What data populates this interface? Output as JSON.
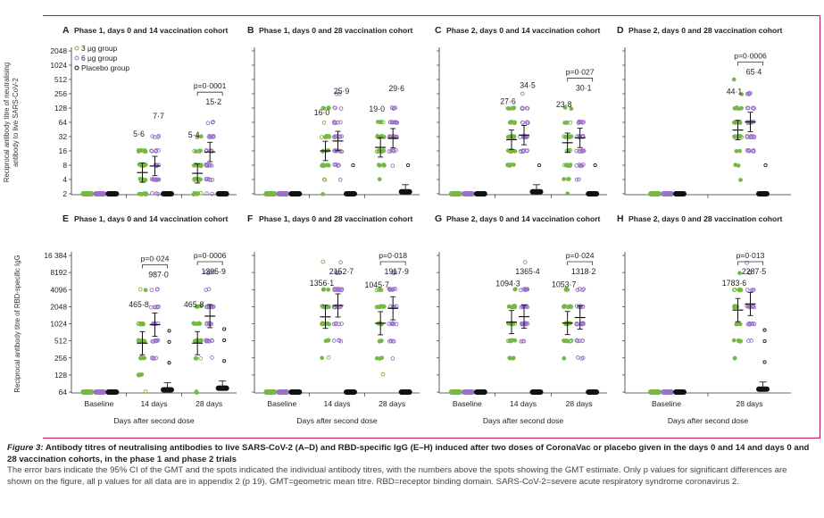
{
  "figure": {
    "caption_label": "Figure 3:",
    "caption_title": " Antibody titres of neutralising antibodies to live SARS-CoV-2 (A–D) and RBD-specific IgG (E–H) induced after two doses of CoronaVac or placebo given in the days 0 and 14 and days 0 and 28 vaccination cohorts, in the phase 1 and phase 2 trials",
    "caption_body": "The error bars indicate the 95% CI of the GMT and the spots indicated the individual antibody titres, with the numbers above the spots showing the GMT estimate. Only p values for significant differences are shown on the figure, all p values for all data are in appendix 2 (p 19). GMT=geometric mean titre. RBD=receptor binding domain. SARS-CoV-2=severe acute respiratory syndrome coronavirus 2."
  },
  "colors": {
    "g3": "#76b843",
    "g6": "#9a72c6",
    "placebo": "#111111",
    "frame": "#c2185b"
  },
  "legend": [
    "3 μg group",
    "6 μg group",
    "Placebo group"
  ],
  "xlabel": "Days after second dose",
  "chart_data": [
    {
      "panel": "A",
      "title": "Phase 1, days 0 and 14 vaccination cohort",
      "type": "scatter",
      "ylabel": "Reciprocal antibody titre of neutralising antibody to live SARS-CoV-2",
      "yticks": [
        "2048",
        "1024",
        "512",
        "256",
        "128",
        "64",
        "32",
        "16",
        "8",
        "4",
        "2"
      ],
      "yrange": [
        2,
        2048
      ],
      "categories": [
        "Baseline",
        "14 days",
        "28 days"
      ],
      "series": [
        {
          "name": "3 μg group",
          "gmt": [
            2,
            5.6,
            5.4
          ],
          "gmt_labels": [
            "",
            "5·6",
            "5·4"
          ]
        },
        {
          "name": "6 μg group",
          "gmt": [
            2,
            7.7,
            15.2
          ],
          "gmt_labels": [
            "",
            "7·7",
            "15·2"
          ]
        },
        {
          "name": "Placebo group",
          "gmt": [
            2,
            2,
            2
          ],
          "gmt_labels": [
            "",
            "",
            ""
          ]
        }
      ],
      "pvalues": [
        {
          "category": "28 days",
          "text": "p=0·0001"
        }
      ]
    },
    {
      "panel": "B",
      "title": "Phase 1, days 0 and 28 vaccination cohort",
      "type": "scatter",
      "yrange": [
        2,
        2048
      ],
      "categories": [
        "Baseline",
        "14 days",
        "28 days"
      ],
      "series": [
        {
          "name": "3 μg group",
          "gmt": [
            2,
            16.0,
            19.0
          ],
          "gmt_labels": [
            "",
            "16·0",
            "19·0"
          ]
        },
        {
          "name": "6 μg group",
          "gmt": [
            2,
            25.9,
            29.6
          ],
          "gmt_labels": [
            "",
            "25·9",
            "29·6"
          ]
        },
        {
          "name": "Placebo group",
          "gmt": [
            2,
            2,
            2.2
          ],
          "gmt_labels": [
            "",
            "",
            ""
          ]
        }
      ],
      "pvalues": []
    },
    {
      "panel": "C",
      "title": "Phase 2, days 0 and 14 vaccination cohort",
      "type": "scatter",
      "yrange": [
        2,
        2048
      ],
      "categories": [
        "Baseline",
        "14 days",
        "28 days"
      ],
      "series": [
        {
          "name": "3 μg group",
          "gmt": [
            2,
            27.6,
            23.8
          ],
          "gmt_labels": [
            "",
            "27·6",
            "23·8"
          ]
        },
        {
          "name": "6 μg group",
          "gmt": [
            2,
            34.5,
            30.1
          ],
          "gmt_labels": [
            "",
            "34·5",
            "30·1"
          ]
        },
        {
          "name": "Placebo group",
          "gmt": [
            2,
            2.2,
            2
          ],
          "gmt_labels": [
            "",
            "",
            ""
          ]
        }
      ],
      "pvalues": [
        {
          "category": "28 days",
          "text": "p=0·027"
        }
      ]
    },
    {
      "panel": "D",
      "title": "Phase 2, days 0 and 28 vaccination cohort",
      "type": "scatter",
      "yrange": [
        2,
        2048
      ],
      "categories": [
        "Baseline",
        "28 days"
      ],
      "series": [
        {
          "name": "3 μg group",
          "gmt": [
            2,
            44.1
          ],
          "gmt_labels": [
            "",
            "44·1"
          ]
        },
        {
          "name": "6 μg group",
          "gmt": [
            2,
            65.4
          ],
          "gmt_labels": [
            "",
            "65·4"
          ]
        },
        {
          "name": "Placebo group",
          "gmt": [
            2,
            2
          ],
          "gmt_labels": [
            "",
            ""
          ]
        }
      ],
      "pvalues": [
        {
          "category": "28 days",
          "text": "p=0·0006"
        }
      ]
    },
    {
      "panel": "E",
      "title": "Phase 1, days 0 and 14 vaccination cohort",
      "type": "scatter",
      "ylabel": "Reciprocal antibody titre of RBD-specific IgG",
      "yticks": [
        "16 384",
        "8192",
        "4096",
        "2048",
        "1024",
        "512",
        "256",
        "128",
        "64"
      ],
      "yrange": [
        64,
        16384
      ],
      "categories": [
        "Baseline",
        "14 days",
        "28 days"
      ],
      "series": [
        {
          "name": "3 μg group",
          "gmt": [
            64,
            465.8,
            465.8
          ],
          "gmt_labels": [
            "",
            "465·8",
            "465·8"
          ]
        },
        {
          "name": "6 μg group",
          "gmt": [
            64,
            987.0,
            1395.9
          ],
          "gmt_labels": [
            "",
            "987·0",
            "1395·9"
          ]
        },
        {
          "name": "Placebo group",
          "gmt": [
            64,
            70,
            75
          ],
          "gmt_labels": [
            "",
            "",
            ""
          ]
        }
      ],
      "pvalues": [
        {
          "category": "14 days",
          "text": "p=0·024"
        },
        {
          "category": "28 days",
          "text": "p=0·0006"
        }
      ]
    },
    {
      "panel": "F",
      "title": "Phase 1, days 0 and 28 vaccination cohort",
      "type": "scatter",
      "yrange": [
        64,
        16384
      ],
      "categories": [
        "Baseline",
        "14 days",
        "28 days"
      ],
      "series": [
        {
          "name": "3 μg group",
          "gmt": [
            64,
            1356.1,
            1045.7
          ],
          "gmt_labels": [
            "",
            "1356·1",
            "1045·7"
          ]
        },
        {
          "name": "6 μg group",
          "gmt": [
            64,
            2152.7,
            1917.9
          ],
          "gmt_labels": [
            "",
            "2152·7",
            "1917·9"
          ]
        },
        {
          "name": "Placebo group",
          "gmt": [
            64,
            64,
            64
          ],
          "gmt_labels": [
            "",
            "",
            ""
          ]
        }
      ],
      "pvalues": [
        {
          "category": "28 days",
          "text": "p=0·018"
        }
      ]
    },
    {
      "panel": "G",
      "title": "Phase 2, days 0 and 14 vaccination cohort",
      "type": "scatter",
      "yrange": [
        64,
        16384
      ],
      "categories": [
        "Baseline",
        "14 days",
        "28 days"
      ],
      "series": [
        {
          "name": "3 μg group",
          "gmt": [
            64,
            1094.3,
            1053.7
          ],
          "gmt_labels": [
            "",
            "1094·3",
            "1053·7"
          ]
        },
        {
          "name": "6 μg group",
          "gmt": [
            64,
            1365.4,
            1318.2
          ],
          "gmt_labels": [
            "",
            "1365·4",
            "1318·2"
          ]
        },
        {
          "name": "Placebo group",
          "gmt": [
            64,
            64,
            64
          ],
          "gmt_labels": [
            "",
            "",
            ""
          ]
        }
      ],
      "pvalues": [
        {
          "category": "28 days",
          "text": "p=0·024"
        }
      ]
    },
    {
      "panel": "H",
      "title": "Phase 2, days 0 and 28 vaccination cohort",
      "type": "scatter",
      "yrange": [
        64,
        16384
      ],
      "categories": [
        "Baseline",
        "28 days"
      ],
      "series": [
        {
          "name": "3 μg group",
          "gmt": [
            64,
            1783.6
          ],
          "gmt_labels": [
            "",
            "1783·6"
          ]
        },
        {
          "name": "6 μg group",
          "gmt": [
            64,
            2287.5
          ],
          "gmt_labels": [
            "",
            "2287·5"
          ]
        },
        {
          "name": "Placebo group",
          "gmt": [
            64,
            72
          ],
          "gmt_labels": [
            "",
            ""
          ]
        }
      ],
      "pvalues": [
        {
          "category": "28 days",
          "text": "p=0·013"
        }
      ]
    }
  ]
}
